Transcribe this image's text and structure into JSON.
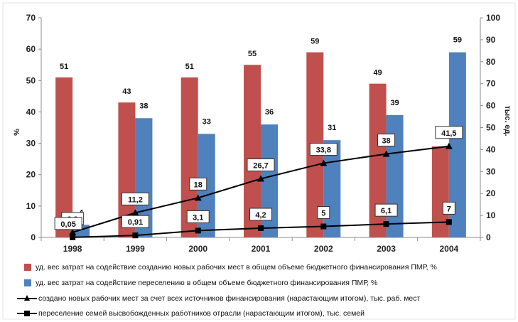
{
  "chart_data": {
    "type": "bar",
    "categories": [
      "1998",
      "1999",
      "2000",
      "2001",
      "2002",
      "2003",
      "2004"
    ],
    "y_left": {
      "label": "%",
      "lim": [
        0,
        70
      ],
      "ticks": [
        "0",
        "10",
        "20",
        "30",
        "40",
        "50",
        "60",
        "70"
      ]
    },
    "y_right": {
      "label": "тыс. ед.",
      "lim": [
        0,
        100
      ],
      "ticks": [
        "0",
        "10",
        "20",
        "30",
        "40",
        "50",
        "60",
        "70",
        "80",
        "90",
        "100"
      ]
    },
    "grid": false,
    "legend_position": "bottom",
    "series": [
      {
        "name": "уд. вес затрат на содействие созданию новых рабочих мест в общем объеме бюджетного финансирования ПМР, %",
        "kind": "bar",
        "axis": "left",
        "color": "#c0504d",
        "values": [
          51,
          43,
          51,
          55,
          59,
          49,
          29
        ],
        "labels": [
          "51",
          "43",
          "51",
          "55",
          "59",
          "49",
          "29"
        ]
      },
      {
        "name": "уд. вес затрат на содействие переселению в общем объеме бюджетного финансирования ПМР, %",
        "kind": "bar",
        "axis": "left",
        "color": "#4f81bd",
        "values": [
          4,
          38,
          33,
          36,
          31,
          39,
          59
        ],
        "labels": [
          "4",
          "38",
          "33",
          "36",
          "31",
          "39",
          "59"
        ]
      },
      {
        "name": "создано новых рабочих мест за счет всех источников финансирования (нарастающим итогом), тыс. раб. мест",
        "kind": "line",
        "axis": "right",
        "marker": "triangle",
        "color": "#000000",
        "values": [
          2.3,
          11.2,
          18,
          26.7,
          33.8,
          38,
          41.5
        ],
        "labels": [
          "2,3",
          "11,2",
          "18",
          "26,7",
          "33,8",
          "38",
          "41,5"
        ]
      },
      {
        "name": "переселение семей высвобожденных работников отрасли (нарастающим итогом), тыс. семей",
        "kind": "line",
        "axis": "right",
        "marker": "square",
        "color": "#000000",
        "values": [
          0.05,
          0.91,
          3.1,
          4.2,
          5,
          6.1,
          7
        ],
        "labels": [
          "0,05",
          "0,91",
          "3,1",
          "4,2",
          "5",
          "6,1",
          "7"
        ]
      }
    ]
  }
}
